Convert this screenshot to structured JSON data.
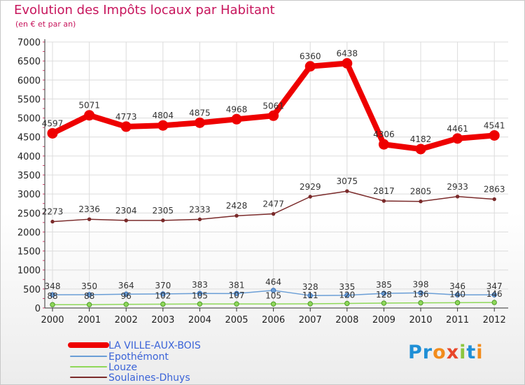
{
  "header": {
    "title": "Evolution des Impôts locaux par Habitant",
    "subtitle": "(en € et par an)"
  },
  "logo": {
    "letters": [
      "P",
      "r",
      "o",
      "x",
      "i",
      "t",
      "i"
    ],
    "colors": [
      "#1f8fd6",
      "#1f8fd6",
      "#f28c1c",
      "#e8462a",
      "#8cc63f",
      "#1f8fd6",
      "#f28c1c"
    ]
  },
  "colors": {
    "title": "#c7155c",
    "grid": "#dcdcdc",
    "legend_text": "#3a63d8"
  },
  "chart_data": {
    "type": "line",
    "title": "Evolution des Impôts locaux par Habitant",
    "subtitle": "(en € et par an)",
    "xlabel": "",
    "ylabel": "",
    "ylim": [
      0,
      7000
    ],
    "y_ticks": [
      0,
      500,
      1000,
      1500,
      2000,
      2500,
      3000,
      3500,
      4000,
      4500,
      5000,
      5500,
      6000,
      6500,
      7000
    ],
    "categories": [
      "2000",
      "2001",
      "2002",
      "2003",
      "2004",
      "2005",
      "2006",
      "2007",
      "2008",
      "2009",
      "2010",
      "2011",
      "2012"
    ],
    "grid": true,
    "legend_position": "bottom-left",
    "series": [
      {
        "name": "LA VILLE-AUX-BOIS",
        "color": "#ee0000",
        "values": [
          4597,
          5071,
          4773,
          4804,
          4875,
          4968,
          5061,
          6360,
          6438,
          4306,
          4182,
          4461,
          4541
        ],
        "labels": [
          "4597",
          "5071",
          "4773",
          "4804",
          "4875",
          "4968",
          "5061",
          "6360",
          "6438",
          "4306",
          "4182",
          "4461",
          "4541"
        ]
      },
      {
        "name": "Epothémont",
        "color": "#6a9ed6",
        "values": [
          348,
          350,
          364,
          370,
          383,
          381,
          464,
          328,
          335,
          385,
          398,
          346,
          347
        ],
        "labels": [
          "348",
          "350",
          "364",
          "370",
          "383",
          "381",
          "464",
          "328",
          "335",
          "385",
          "398",
          "346",
          "347"
        ]
      },
      {
        "name": "Louze",
        "color": "#8fd85a",
        "values": [
          88,
          88,
          96,
          102,
          105,
          107,
          105,
          111,
          120,
          128,
          136,
          140,
          146
        ],
        "labels": [
          "88",
          "88",
          "96",
          "102",
          "105",
          "107",
          "105",
          "111",
          "120",
          "128",
          "136",
          "140",
          "146"
        ]
      },
      {
        "name": "Soulaines-Dhuys",
        "color": "#7a2a2a",
        "values": [
          2273,
          2336,
          2304,
          2305,
          2333,
          2428,
          2477,
          2929,
          3075,
          2817,
          2805,
          2933,
          2863
        ],
        "labels": [
          "2273",
          "2336",
          "2304",
          "2305",
          "2333",
          "2428",
          "2477",
          "2929",
          "3075",
          "2817",
          "2805",
          "2933",
          "2863"
        ]
      }
    ]
  }
}
